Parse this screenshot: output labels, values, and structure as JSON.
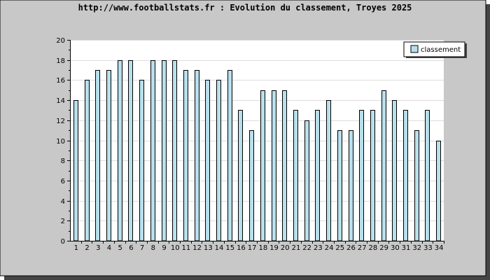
{
  "chart_data": {
    "type": "bar",
    "title": "http://www.footballstats.fr : Evolution du classement, Troyes 2025",
    "xlabel": "",
    "ylabel": "",
    "categories": [
      "1",
      "2",
      "3",
      "4",
      "5",
      "6",
      "7",
      "8",
      "9",
      "10",
      "11",
      "12",
      "13",
      "14",
      "15",
      "16",
      "17",
      "18",
      "19",
      "20",
      "21",
      "22",
      "23",
      "24",
      "25",
      "26",
      "27",
      "28",
      "29",
      "30",
      "31",
      "32",
      "33",
      "34"
    ],
    "series": [
      {
        "name": "classement",
        "values": [
          14,
          16,
          17,
          17,
          18,
          18,
          16,
          18,
          18,
          18,
          17,
          17,
          16,
          16,
          17,
          13,
          11,
          15,
          15,
          15,
          13,
          12,
          13,
          14,
          11,
          11,
          13,
          13,
          15,
          14,
          13,
          11,
          13,
          10
        ]
      }
    ],
    "ylim": [
      0,
      20
    ],
    "yticks": [
      "0",
      "2",
      "4",
      "6",
      "8",
      "10",
      "12",
      "14",
      "16",
      "18",
      "20"
    ],
    "grid": true,
    "legend_position": "top-right",
    "colors": {
      "frame_bg": "#c8c8c8",
      "plot_bg": "#ffffff",
      "bar_fill": "#b8e0ec",
      "bar_stroke": "#000000",
      "grid": "#dddddd",
      "shadow": "#444444"
    }
  }
}
